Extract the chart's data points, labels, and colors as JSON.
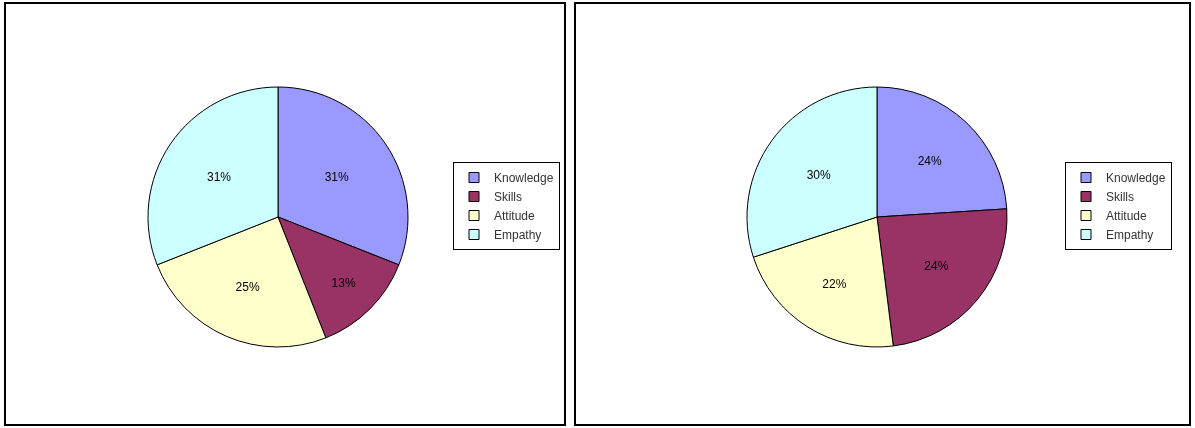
{
  "chart_data": [
    {
      "type": "pie",
      "categories": [
        "Knowledge",
        "Skills",
        "Attitude",
        "Empathy"
      ],
      "values": [
        31,
        13,
        25,
        31
      ],
      "value_labels": [
        "31%",
        "13%",
        "25%",
        "31%"
      ],
      "colors": [
        "#9999ff",
        "#993366",
        "#ffffcc",
        "#ccffff"
      ],
      "legend": "right"
    },
    {
      "type": "pie",
      "categories": [
        "Knowledge",
        "Skills",
        "Attitude",
        "Empathy"
      ],
      "values": [
        24,
        24,
        22,
        30
      ],
      "value_labels": [
        "24%",
        "24%",
        "22%",
        "30%"
      ],
      "colors": [
        "#9999ff",
        "#993366",
        "#ffffcc",
        "#ccffff"
      ],
      "legend": "right"
    }
  ]
}
